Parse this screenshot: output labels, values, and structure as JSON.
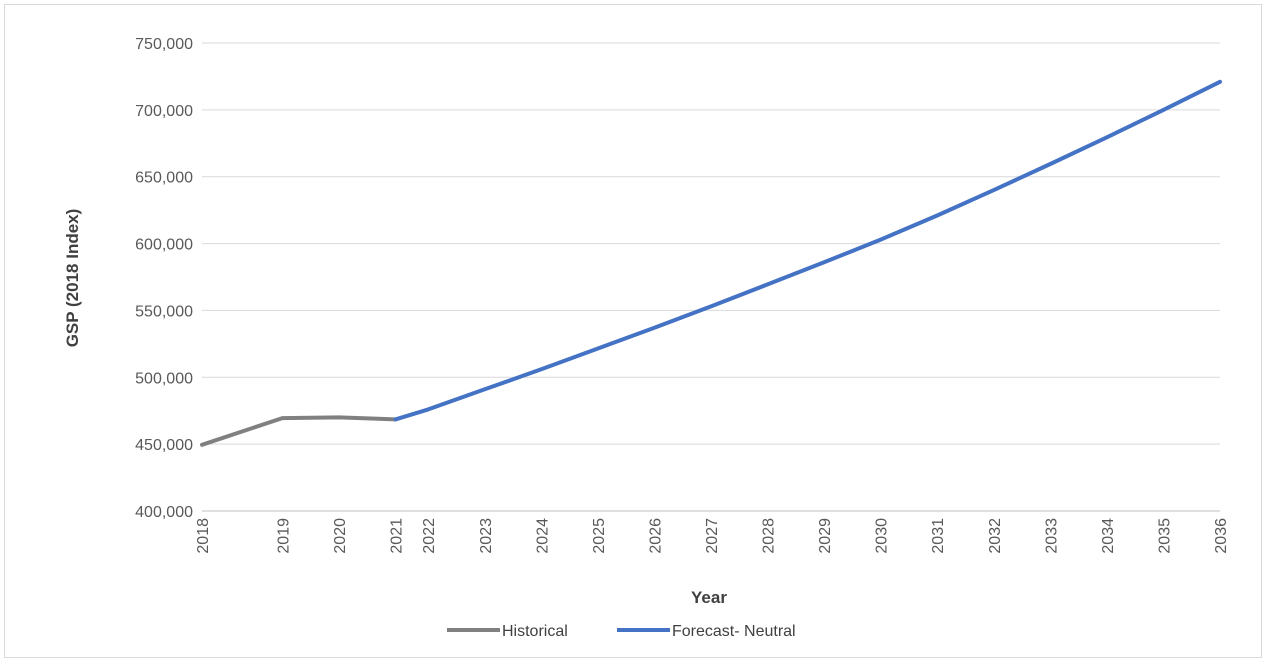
{
  "chart_data": {
    "type": "line",
    "title": "",
    "xlabel": "Year",
    "ylabel": "GSP (2018 Index)",
    "x": [
      "2018",
      "2019",
      "2020",
      "2021",
      "2022",
      "2023",
      "2024",
      "2025",
      "2026",
      "2027",
      "2028",
      "2029",
      "2030",
      "2031",
      "2032",
      "2033",
      "2034",
      "2035",
      "2036"
    ],
    "x_points": [
      2018.0,
      2019.42,
      2020.42,
      2021.42,
      2022.0,
      2023.0,
      2024.0,
      2025.0,
      2026.0,
      2027.0,
      2028.0,
      2029.0,
      2030.0,
      2031.0,
      2032.0,
      2033.0,
      2034.0,
      2035.0,
      2036.0
    ],
    "ylim": [
      400000,
      750000
    ],
    "yticks": [
      400000,
      450000,
      500000,
      550000,
      600000,
      650000,
      700000,
      750000
    ],
    "ytick_labels": [
      "400,000",
      "450,000",
      "500,000",
      "550,000",
      "600,000",
      "650,000",
      "700,000",
      "750,000"
    ],
    "grid": true,
    "legend_position": "bottom",
    "series": [
      {
        "name": "Historical",
        "color": "#808080",
        "points": [
          [
            2018.0,
            449500
          ],
          [
            2019.42,
            469500
          ],
          [
            2020.42,
            470000
          ],
          [
            2021.42,
            468500
          ]
        ]
      },
      {
        "name": "Forecast- Neutral",
        "color": "#4472C4",
        "points": [
          [
            2021.42,
            468500
          ],
          [
            2022.0,
            476000
          ],
          [
            2023.0,
            491000
          ],
          [
            2024.0,
            506000
          ],
          [
            2025.0,
            521500
          ],
          [
            2026.0,
            537000
          ],
          [
            2027.0,
            553000
          ],
          [
            2028.0,
            569500
          ],
          [
            2029.0,
            586000
          ],
          [
            2030.0,
            603000
          ],
          [
            2031.0,
            621000
          ],
          [
            2032.0,
            640000
          ],
          [
            2033.0,
            659500
          ],
          [
            2034.0,
            679500
          ],
          [
            2035.0,
            700000
          ],
          [
            2036.0,
            721000
          ]
        ]
      }
    ]
  }
}
